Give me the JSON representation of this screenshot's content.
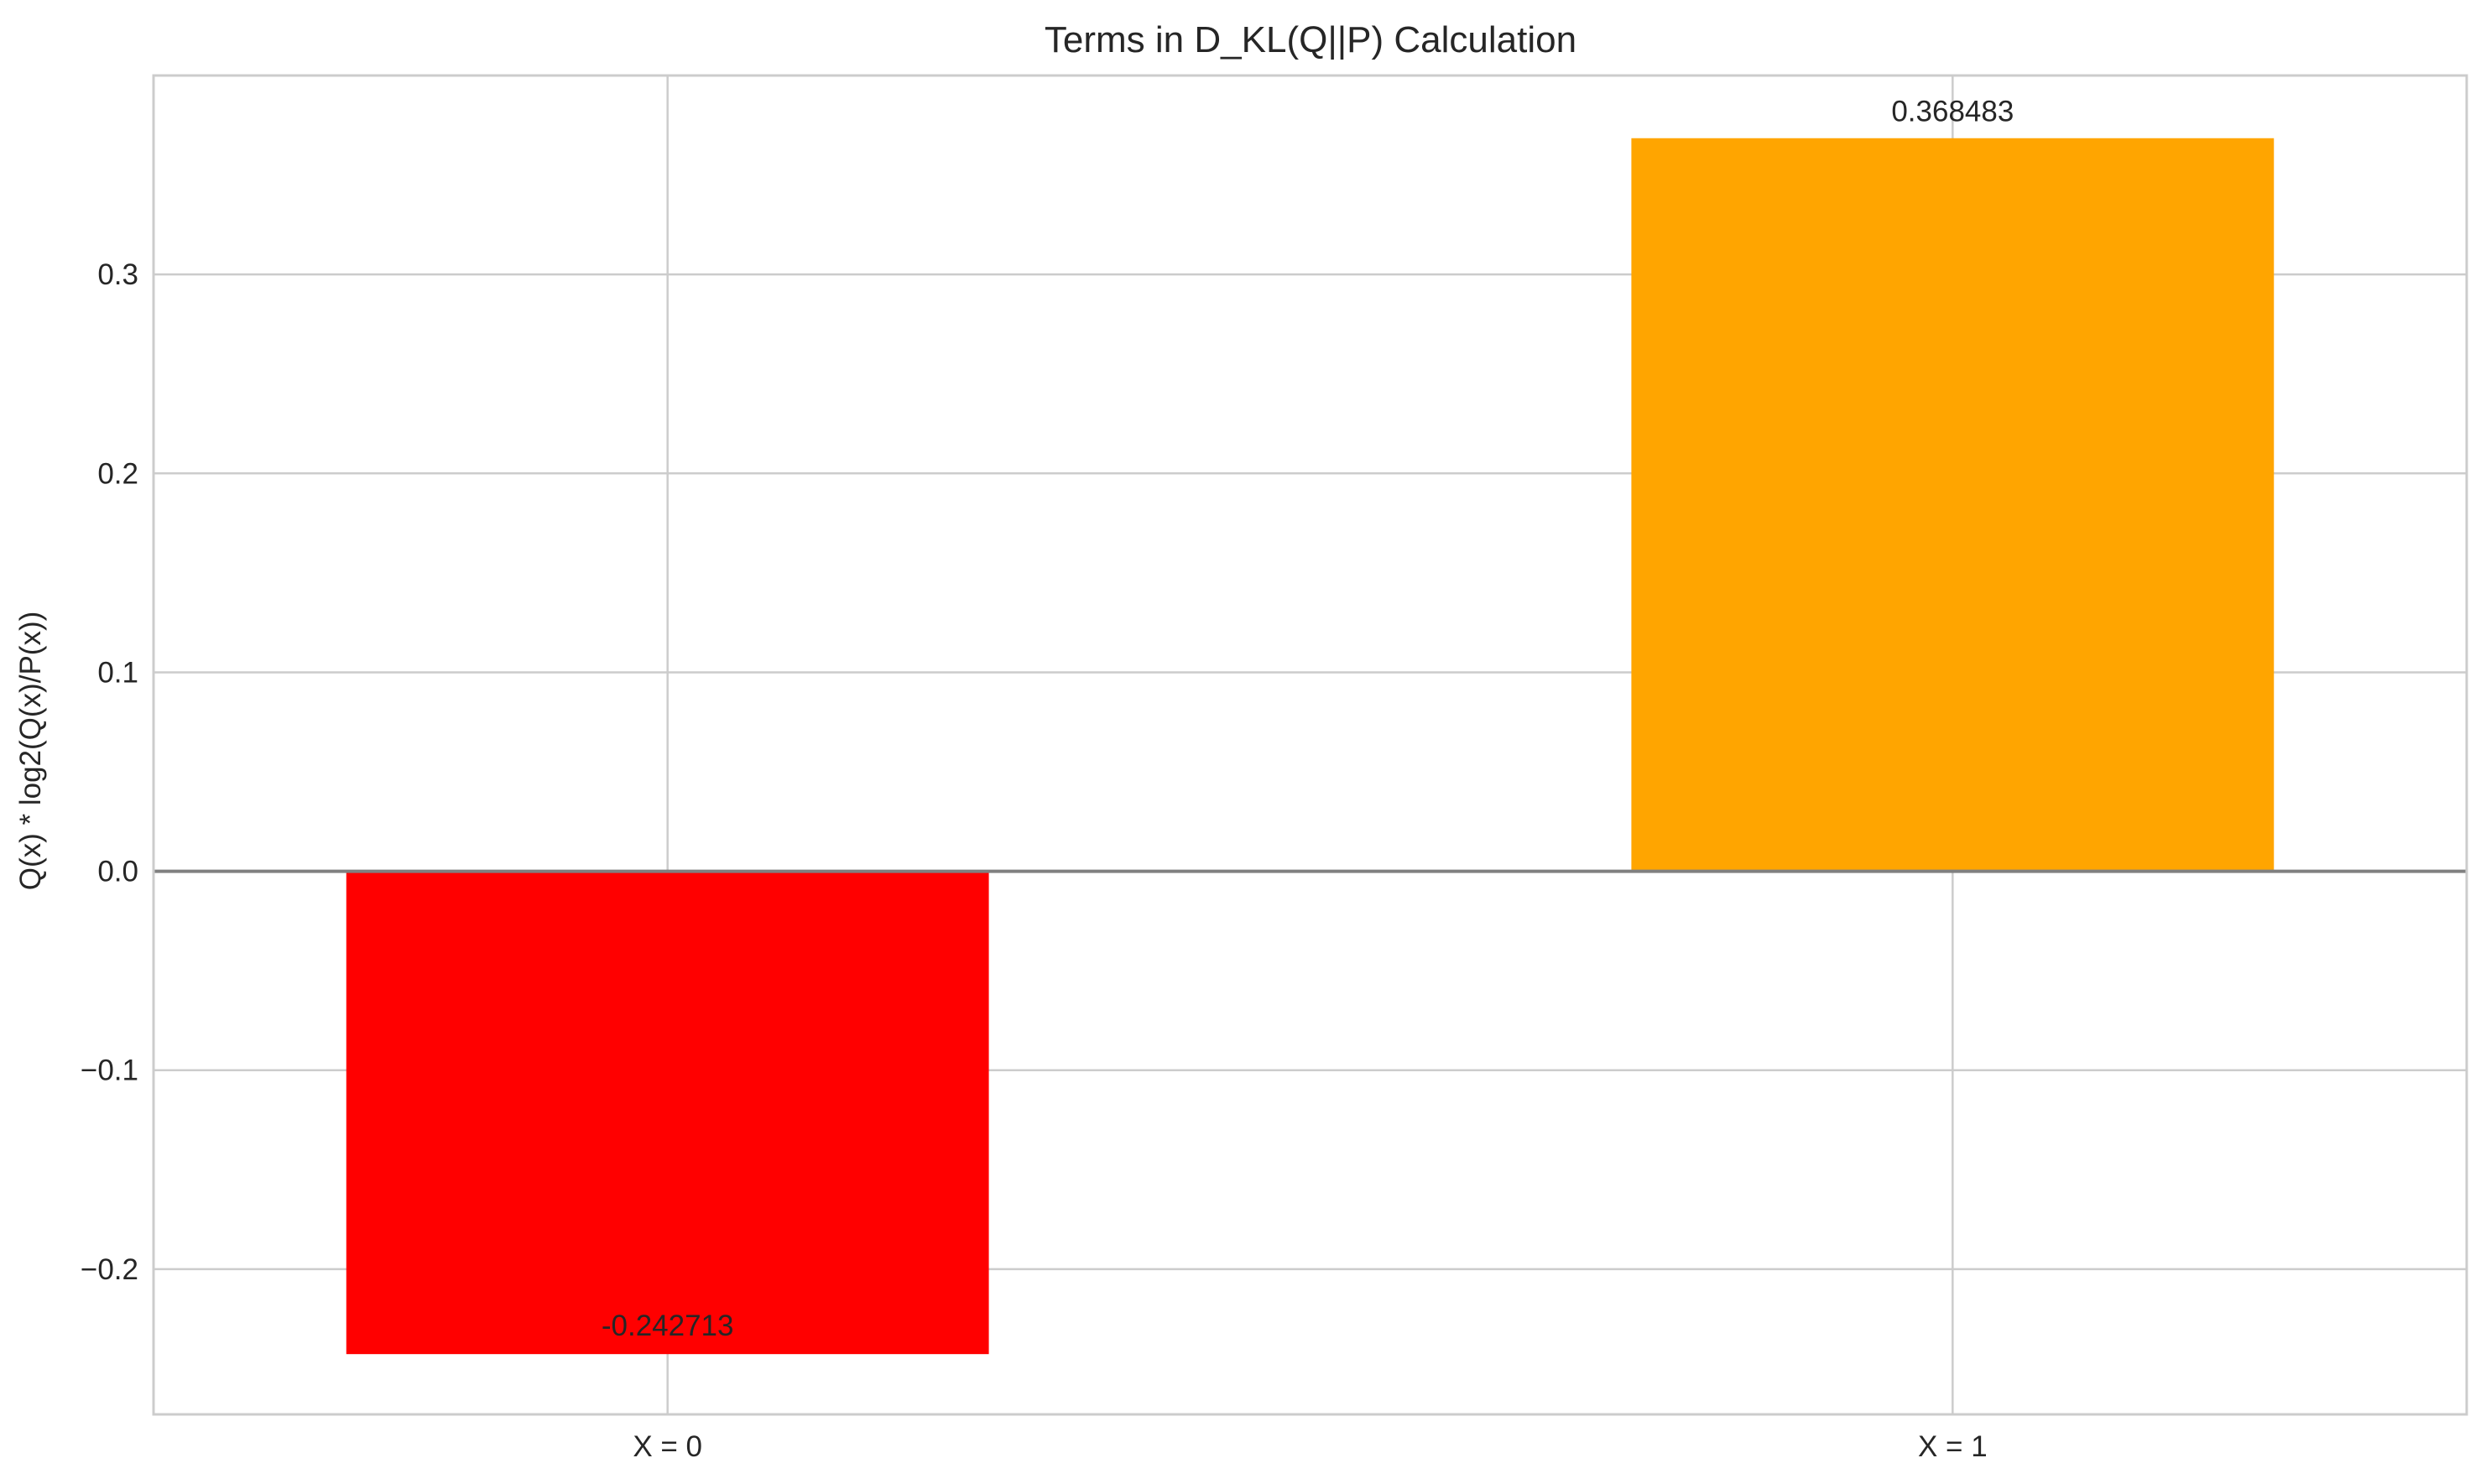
{
  "chart_data": {
    "type": "bar",
    "title": "Terms in D_KL(Q||P) Calculation",
    "xlabel": "",
    "ylabel": "Q(x) * log2(Q(x)/P(x))",
    "categories": [
      "X = 0",
      "X = 1"
    ],
    "values": [
      -0.242713,
      0.368483
    ],
    "value_labels": [
      "-0.242713",
      "0.368483"
    ],
    "bar_colors": [
      "#ff0000",
      "#ffa500"
    ],
    "ylim": [
      -0.273,
      0.4
    ],
    "yticks": [
      -0.2,
      -0.1,
      0.0,
      0.1,
      0.2,
      0.3
    ],
    "ytick_labels": [
      "−0.2",
      "−0.1",
      "0.0",
      "0.1",
      "0.2",
      "0.3"
    ],
    "grid": true,
    "zero_line_color": "#808080",
    "grid_color": "#cccccc",
    "legend": "none"
  }
}
